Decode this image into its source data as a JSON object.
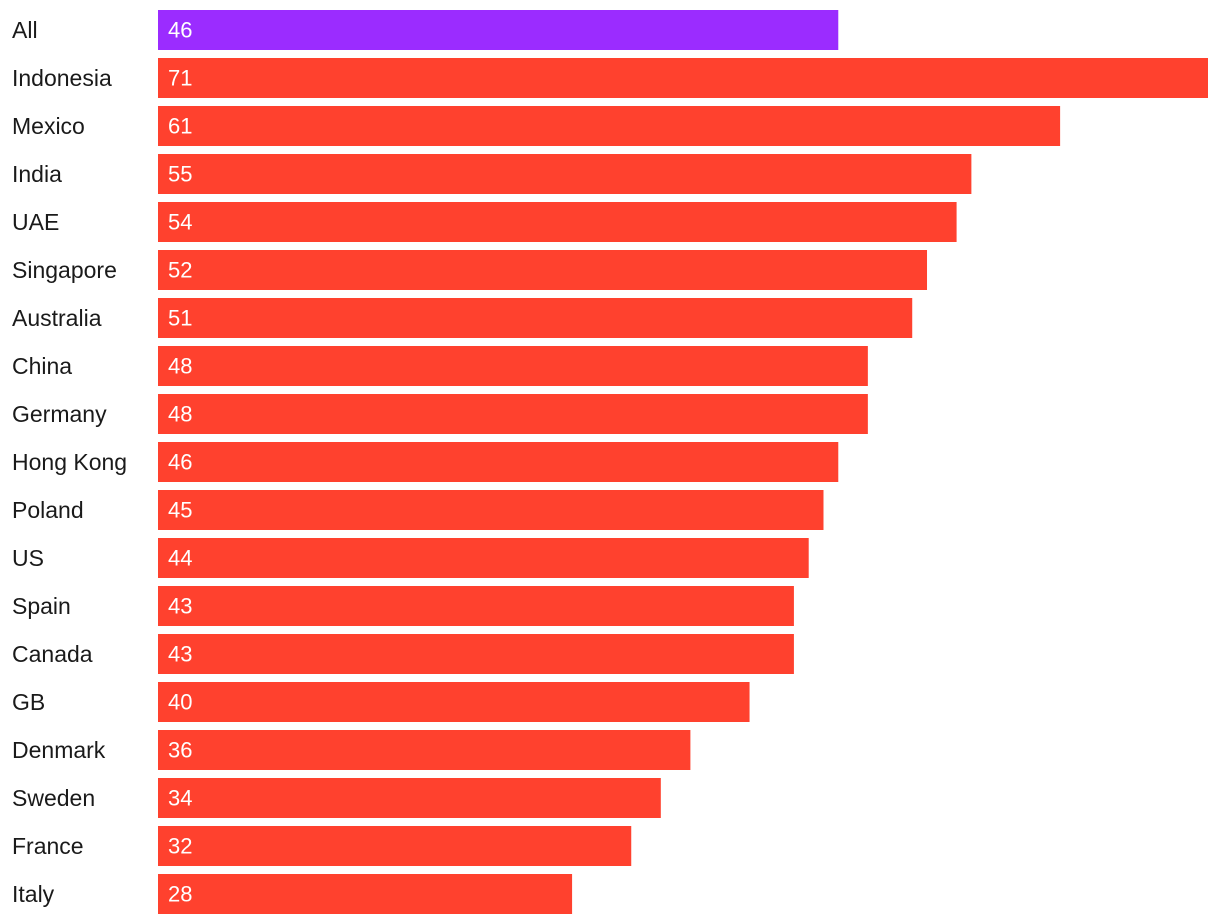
{
  "chart_data": {
    "type": "bar",
    "orientation": "horizontal",
    "categories": [
      "All",
      "Indonesia",
      "Mexico",
      "India",
      "UAE",
      "Singapore",
      "Australia",
      "China",
      "Germany",
      "Hong Kong",
      "Poland",
      "US",
      "Spain",
      "Canada",
      "GB",
      "Denmark",
      "Sweden",
      "France",
      "Italy"
    ],
    "values": [
      46,
      71,
      61,
      55,
      54,
      52,
      51,
      48,
      48,
      46,
      45,
      44,
      43,
      43,
      40,
      36,
      34,
      32,
      28
    ],
    "highlight_category": "All",
    "colors": {
      "highlight": "#9b2cff",
      "bar": "#ff412e",
      "value_label": "#ffffff",
      "category_label": "#1a1a1a"
    },
    "xlim": [
      0,
      71
    ],
    "grid": false,
    "legend": "none",
    "title": "",
    "xlabel": "",
    "ylabel": ""
  }
}
